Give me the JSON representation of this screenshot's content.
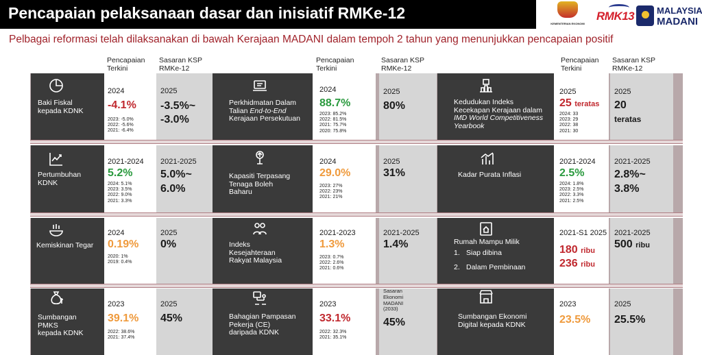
{
  "title": "Pencapaian pelaksanaan dasar dan inisiatif RMKe-12",
  "subtitle": "Pelbagai reformasi telah dilaksanakan di bawah Kerajaan MADANI dalam tempoh 2 tahun yang menunjukkan pencapaian positif",
  "logos": {
    "kementerian": "KEMENTERIAN EKONOMI",
    "rmk": "RMK13",
    "madani_top": "MALAYSIA",
    "madani_bottom": "MADANI"
  },
  "headers": {
    "pencapaian": [
      "Pencapaian",
      "Terkini"
    ],
    "sasaran": [
      "Sasaran KSP",
      "RMKe-12"
    ]
  },
  "rows": [
    {
      "c1": {
        "label_lines": [
          "Baki Fiskal",
          "kepada KDNK"
        ],
        "cur_year": "2024",
        "cur_value": "-4.1%",
        "hist": [
          "2023: -5.0%",
          "2022: -5.6%",
          "2021: -6.4%"
        ],
        "target_year": "2025",
        "target_lines": [
          "-3.5%~",
          "-3.0%"
        ]
      },
      "c2": {
        "label_lines": [
          "Perkhidmatan Dalam",
          "Talian End-to-End",
          "Kerajaan Persekutuan"
        ],
        "cur_year": "2024",
        "cur_value": "88.7%",
        "hist": [
          "2023: 85.2%",
          "2022: 81.5%",
          "2021: 75.7%",
          "2020: 75.8%"
        ],
        "target_year": "2025",
        "target_value": "80%"
      },
      "c3": {
        "label_lines": [
          "Kedudukan Indeks",
          "Kecekapan Kerajaan dalam",
          "IMD World Competitiveness",
          "Yearbook"
        ],
        "cur_year": "2025",
        "cur_value": "25",
        "cur_suffix": "teratas",
        "hist": [
          "2024: 33",
          "2023: 29",
          "2022: 38",
          "2021: 30"
        ],
        "target_year": "2025",
        "target_value": "20",
        "target_suffix": "teratas"
      }
    },
    {
      "c1": {
        "label_lines": [
          "Pertumbuhan",
          "KDNK"
        ],
        "cur_year": "2021-2024",
        "cur_value": "5.2%",
        "hist": [
          "2024: 5.1%",
          "2023: 3.5%",
          "2022: 9.0%",
          "2021: 3.3%"
        ],
        "target_year": "2021-2025",
        "target_lines": [
          "5.0%~",
          "6.0%"
        ]
      },
      "c2": {
        "label_lines": [
          "Kapasiti Terpasang",
          "Tenaga Boleh",
          "Baharu"
        ],
        "cur_year": "2024",
        "cur_value": "29.0%",
        "hist": [
          "2023: 27%",
          "2022: 23%",
          "2021: 21%"
        ],
        "target_year": "2025",
        "target_value": "31%"
      },
      "c3": {
        "label_lines": [
          "Kadar Purata Inflasi"
        ],
        "cur_year": "2021-2024",
        "cur_value": "2.5%",
        "hist": [
          "2024: 1.8%",
          "2023: 2.5%",
          "2022: 3.3%",
          "2021: 2.5%"
        ],
        "target_year": "2021-2025",
        "target_lines": [
          "2.8%~",
          "3.8%"
        ]
      }
    },
    {
      "c1": {
        "label_lines": [
          "Kemiskinan Tegar"
        ],
        "cur_year": "2024",
        "cur_value": "0.19%",
        "hist": [
          "2020: 1%",
          "2019: 0.4%"
        ],
        "target_year": "2025",
        "target_value": "0%"
      },
      "c2": {
        "label_lines": [
          "Indeks",
          "Kesejahteraan",
          "Rakyat Malaysia"
        ],
        "cur_year": "2021-2023",
        "cur_value": "1.3%",
        "hist": [
          "2023: 0.7%",
          "2022: 2.6%",
          "2021: 0.6%"
        ],
        "target_year": "2021-2025",
        "target_value": "1.4%"
      },
      "c3": {
        "label_lines": [
          "Rumah Mampu Milik"
        ],
        "list": [
          {
            "num": "1.",
            "text": "Siap dibina"
          },
          {
            "num": "2.",
            "text": "Dalam Pembinaan"
          }
        ],
        "cur_year": "2021-S1 2025",
        "cur_values": [
          {
            "value": "180",
            "unit": "ribu"
          },
          {
            "value": "236",
            "unit": "ribu"
          }
        ],
        "target_year": "2021-2025",
        "target_value": "500",
        "target_suffix": "ribu"
      }
    },
    {
      "c1": {
        "label_lines": [
          "Sumbangan",
          "PMKS",
          "kepada KDNK"
        ],
        "cur_year": "2023",
        "cur_value": "39.1%",
        "hist": [
          "2022: 38.6%",
          "2021: 37.4%"
        ],
        "target_year": "2025",
        "target_value": "45%"
      },
      "c2": {
        "label_lines": [
          "Bahagian Pampasan",
          "Pekerja (CE)",
          "daripada KDNK"
        ],
        "cur_year": "2023",
        "cur_value": "33.1%",
        "hist": [
          "2022: 32.3%",
          "2021: 35.1%"
        ],
        "target_header": [
          "Sasaran",
          "Ekonomi",
          "MADANI",
          "(2033)"
        ],
        "target_value": "45%"
      },
      "c3": {
        "label_lines": [
          "Sumbangan Ekonomi",
          "Digital kepada KDNK"
        ],
        "cur_year": "2023",
        "cur_value": "23.5%",
        "target_year": "2025",
        "target_value": "25.5%"
      }
    }
  ],
  "colors": {
    "title_bg": "#000000",
    "subtitle": "#a0222a",
    "dark_cell": "#3a3a3a",
    "red": "#c0282e",
    "green": "#2a9a3e",
    "orange": "#ef9a3c"
  }
}
